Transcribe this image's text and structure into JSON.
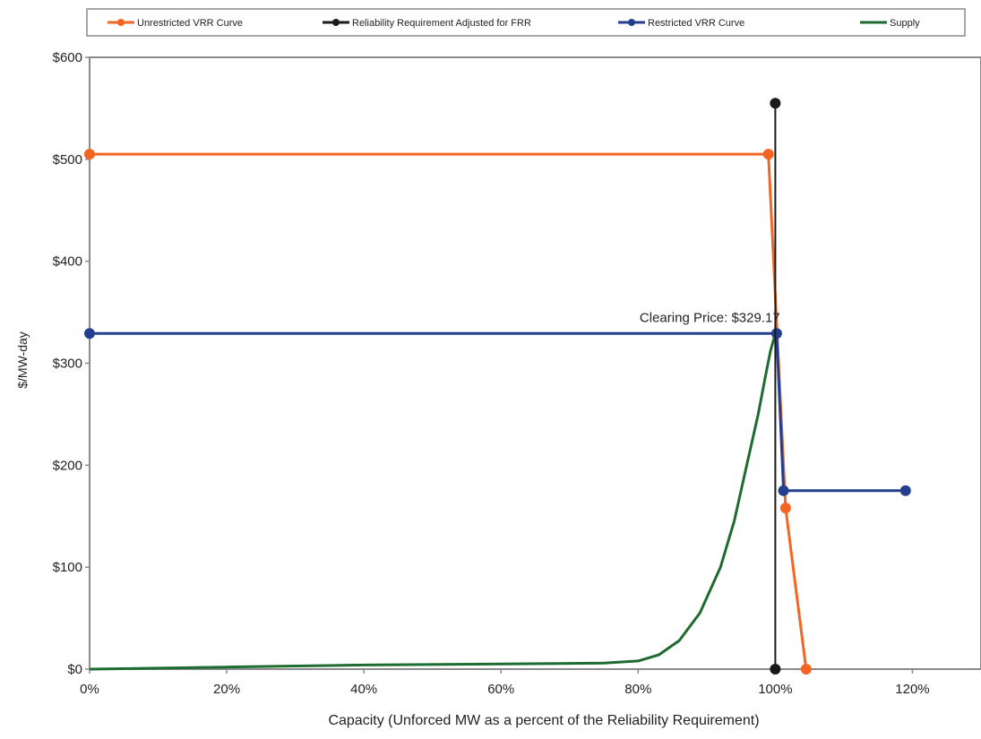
{
  "chart_data": {
    "type": "line",
    "title": "",
    "xlabel": "Capacity (Unforced MW as a percent of the Reliability Requirement)",
    "ylabel": "$/MW-day",
    "xlim": [
      0,
      130
    ],
    "ylim": [
      0,
      600
    ],
    "x_ticks": [
      0,
      20,
      40,
      60,
      80,
      100,
      120
    ],
    "x_tick_labels": [
      "0%",
      "20%",
      "40%",
      "60%",
      "80%",
      "100%",
      "120%"
    ],
    "y_ticks": [
      0,
      100,
      200,
      300,
      400,
      500,
      600
    ],
    "y_tick_labels": [
      "$0",
      "$100",
      "$200",
      "$300",
      "$400",
      "$500",
      "$600"
    ],
    "grid": false,
    "legend_position": "top",
    "series": [
      {
        "name": "Unrestricted VRR Curve",
        "color": "#f26522",
        "markers": true,
        "x": [
          0,
          99,
          101.5,
          104.5
        ],
        "y": [
          505,
          505,
          158,
          0
        ]
      },
      {
        "name": "Reliability Requirement Adjusted for FRR",
        "color": "#1a1a1a",
        "markers": true,
        "x": [
          100,
          100
        ],
        "y": [
          0,
          555
        ]
      },
      {
        "name": "Restricted VRR Curve",
        "color": "#243f8f",
        "markers": true,
        "x": [
          0,
          100.2,
          101.2,
          119
        ],
        "y": [
          329.17,
          329.17,
          175,
          175
        ]
      },
      {
        "name": "Supply",
        "color": "#1d6b2e",
        "markers": false,
        "x": [
          0,
          20,
          40,
          60,
          75,
          80,
          83,
          86,
          89,
          92,
          94,
          96,
          97.5,
          98.5,
          99.3,
          100
        ],
        "y": [
          0,
          2,
          4,
          5,
          6,
          8,
          14,
          28,
          55,
          100,
          145,
          205,
          250,
          285,
          312,
          329
        ]
      }
    ],
    "annotations": [
      {
        "text": "Clearing Price: $329.17",
        "x": 80,
        "y": 329.17
      }
    ]
  }
}
